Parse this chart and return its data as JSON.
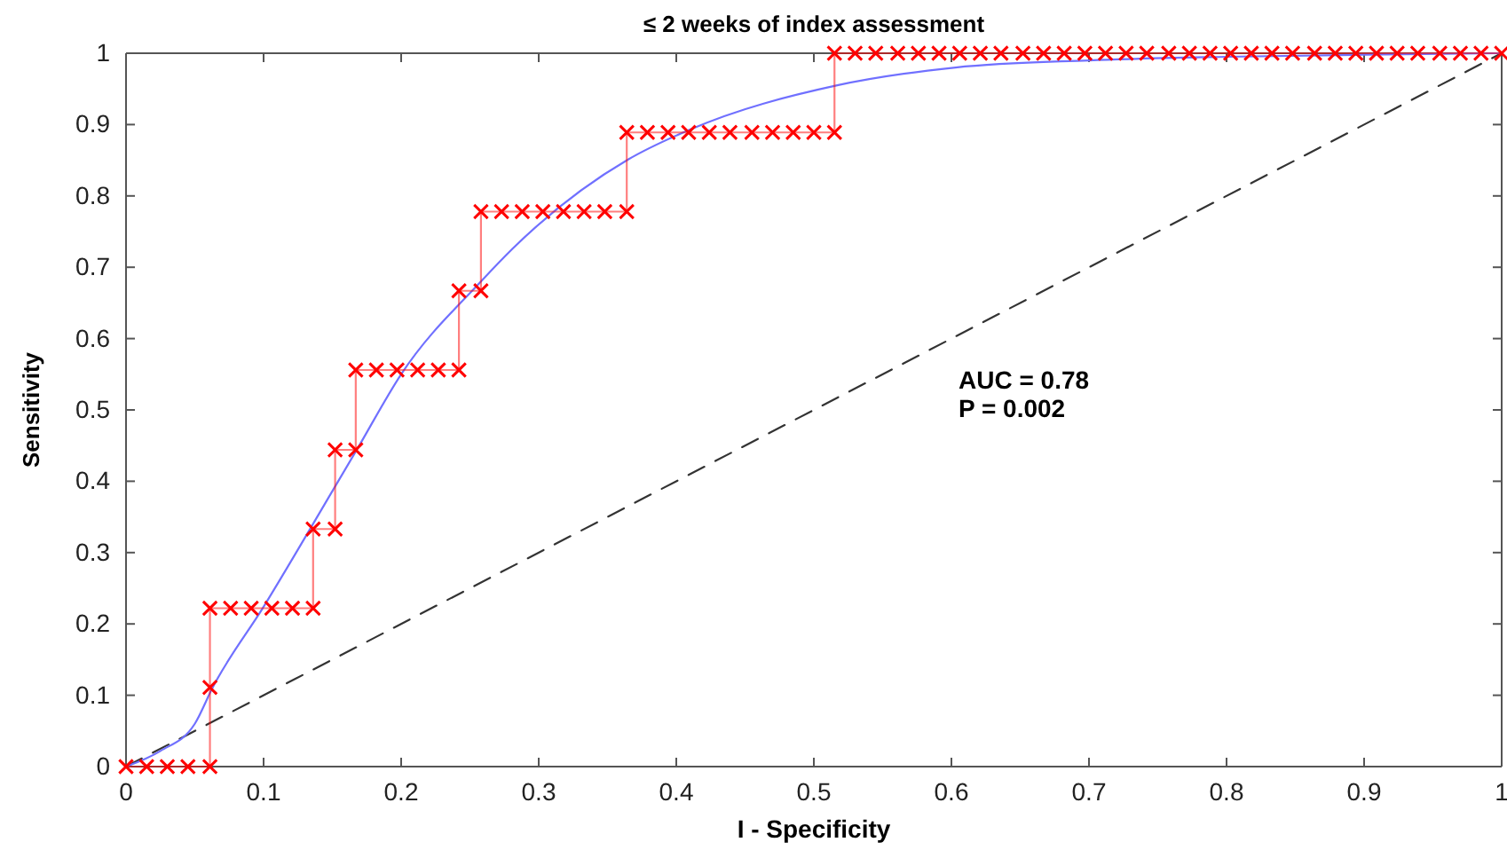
{
  "chart_data": {
    "type": "line",
    "title": "≤ 2 weeks of index assessment",
    "xlabel": "I - Specificity",
    "ylabel": "Sensitivity",
    "xlim": [
      0,
      1
    ],
    "ylim": [
      0,
      1
    ],
    "xticks": [
      0,
      0.1,
      0.2,
      0.3,
      0.4,
      0.5,
      0.6,
      0.7,
      0.8,
      0.9,
      1
    ],
    "yticks": [
      0,
      0.1,
      0.2,
      0.3,
      0.4,
      0.5,
      0.6,
      0.7,
      0.8,
      0.9,
      1
    ],
    "grid": false,
    "annotations": [
      "AUC = 0.78",
      "P = 0.002"
    ],
    "series": [
      {
        "color": "#ff0000",
        "marker": "cross",
        "line_style": "solid",
        "x": [
          0,
          0.015,
          0.03,
          0.045,
          0.061,
          0.061,
          0.061,
          0.076,
          0.091,
          0.106,
          0.121,
          0.136,
          0.136,
          0.152,
          0.152,
          0.167,
          0.167,
          0.182,
          0.197,
          0.212,
          0.227,
          0.242,
          0.242,
          0.258,
          0.258,
          0.273,
          0.288,
          0.303,
          0.318,
          0.333,
          0.348,
          0.364,
          0.364,
          0.379,
          0.394,
          0.409,
          0.424,
          0.439,
          0.455,
          0.47,
          0.485,
          0.5,
          0.515,
          0.515,
          0.53,
          0.545,
          0.561,
          0.576,
          0.591,
          0.606,
          0.621,
          0.636,
          0.652,
          0.667,
          0.682,
          0.697,
          0.712,
          0.727,
          0.742,
          0.758,
          0.773,
          0.788,
          0.803,
          0.818,
          0.833,
          0.848,
          0.864,
          0.879,
          0.894,
          0.909,
          0.924,
          0.939,
          0.955,
          0.97,
          0.985,
          1
        ],
        "values": [
          0,
          0,
          0,
          0,
          0,
          0.111,
          0.222,
          0.222,
          0.222,
          0.222,
          0.222,
          0.222,
          0.333,
          0.333,
          0.444,
          0.444,
          0.556,
          0.556,
          0.556,
          0.556,
          0.556,
          0.556,
          0.667,
          0.667,
          0.778,
          0.778,
          0.778,
          0.778,
          0.778,
          0.778,
          0.778,
          0.778,
          0.889,
          0.889,
          0.889,
          0.889,
          0.889,
          0.889,
          0.889,
          0.889,
          0.889,
          0.889,
          0.889,
          1,
          1,
          1,
          1,
          1,
          1,
          1,
          1,
          1,
          1,
          1,
          1,
          1,
          1,
          1,
          1,
          1,
          1,
          1,
          1,
          1,
          1,
          1,
          1,
          1,
          1,
          1,
          1,
          1,
          1,
          1,
          1,
          1
        ]
      },
      {
        "color": "#7070ff",
        "marker": "none",
        "line_style": "solid",
        "x": [
          0,
          0.025,
          0.05,
          0.063,
          0.1,
          0.153,
          0.168,
          0.2,
          0.258,
          0.281,
          0.365,
          0.41,
          0.517,
          0.603,
          0.7,
          0.8,
          0.9,
          1
        ],
        "values": [
          0,
          0.022,
          0.06,
          0.111,
          0.224,
          0.396,
          0.445,
          0.55,
          0.68,
          0.726,
          0.851,
          0.893,
          0.955,
          0.98,
          0.99,
          0.995,
          0.998,
          1
        ]
      },
      {
        "color": "#333333",
        "marker": "none",
        "line_style": "dashed",
        "x": [
          0,
          1
        ],
        "values": [
          0,
          1
        ]
      }
    ]
  }
}
